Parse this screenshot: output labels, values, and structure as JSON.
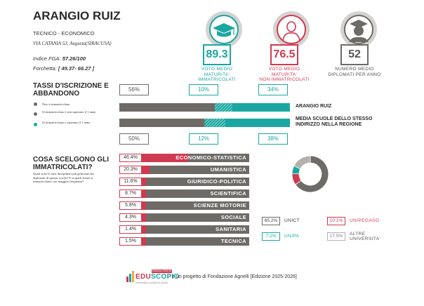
{
  "school": {
    "name": "ARANGIO RUIZ",
    "type": "TECNICO - ECONOMICO",
    "address": "VIA CATANIA 53, Augusta(SIRACUSA)",
    "fga_label": "Indice FGA:",
    "fga_value": "57.26/100",
    "forchetta_label": "Forchetta:",
    "forchetta_value": "[ 49.37- 66.27 ]"
  },
  "stats": [
    {
      "value": "89.3",
      "caption_1": "VOTO MEDIO MATURITA'",
      "caption_2": "IMMATRICOLATI",
      "color": "#1aa7a1"
    },
    {
      "value": "76.5",
      "caption_1": "VOTO MEDIO MATURITA'",
      "caption_2": "NON IMMATRICOLATI",
      "color": "#d03a4f"
    },
    {
      "value": "52",
      "caption_1": "NUMERO MEDIO",
      "caption_2": "DIPLOMATI PER ANNO",
      "color": "#6e6b67"
    }
  ],
  "abbandono": {
    "title_1": "TASSI D'ISCRIZIONE E",
    "title_2": "ABBANDONO",
    "legend": [
      {
        "text": "Non si immatricolano",
        "color": "#6e6b67"
      },
      {
        "text": "Si immatricolano e non superano il 1 anno",
        "color": "#6e6b67"
      },
      {
        "text": "Si immatricolano e superano il 1 anno",
        "color": "#1aa7a1"
      }
    ],
    "school_row": {
      "label": "ARANGIO RUIZ",
      "p1": "56%",
      "p2": "10%",
      "p3": "34%",
      "v1": 56,
      "v2": 10,
      "v3": 34
    },
    "region_row": {
      "label_1": "MEDIA SCUOLE DELLO STESSO",
      "label_2": "INDIRIZZO NELLA REGIONE",
      "p1": "50%",
      "p2": "12%",
      "p3": "38%",
      "v1": 50,
      "v2": 12,
      "v3": 38
    }
  },
  "scelte": {
    "title_1": "COSA SCELGONO GLI",
    "title_2": "IMMATRICOLATI?",
    "note": "Quali sono le aree disciplinari più gettonate dai diplomati di questa scuola? E in quali atenei si immatricolano con maggior frequenza?",
    "areas": [
      {
        "pct": "46.4%",
        "value": 46.4,
        "label": "ECONOMICO-STATISTICA"
      },
      {
        "pct": "20.3%",
        "value": 20.3,
        "label": "UMANISTICA"
      },
      {
        "pct": "11.6%",
        "value": 11.6,
        "label": "GIURIDICO-POLITICA"
      },
      {
        "pct": "8.7%",
        "value": 8.7,
        "label": "SCIENTIFICA"
      },
      {
        "pct": "5.8%",
        "value": 5.8,
        "label": "SCIENZE MOTORIE"
      },
      {
        "pct": "4.3%",
        "value": 4.3,
        "label": "SOCIALE"
      },
      {
        "pct": "1.4%",
        "value": 1.4,
        "label": "SANITARIA"
      },
      {
        "pct": "1.5%",
        "value": 1.5,
        "label": "TECNICA"
      }
    ],
    "universities": [
      {
        "pct": "65.2%",
        "value": 65.2,
        "name_1": "UNICT",
        "name_2": "",
        "color": "#6e6b67"
      },
      {
        "pct": "10.1%",
        "value": 10.1,
        "name_1": "UNIPEGASO",
        "name_2": "",
        "color": "#d03a4f"
      },
      {
        "pct": "7.2%",
        "value": 7.2,
        "name_1": "UNIPA",
        "name_2": "",
        "color": "#1aa7a1"
      },
      {
        "pct": "17.5%",
        "value": 17.5,
        "name_1": "ALTRE",
        "name_2": "UNIVERSITA'",
        "color": "#b3b1ae"
      }
    ]
  },
  "footer": {
    "brand_edu": "EDU",
    "brand_scopio": "SCOPIO",
    "badge": "Edizione 2025-26",
    "tagline": "l'università a portata di scuola",
    "text": "è un progetto di Fondazione Agnelli [Edizione 2025-2026]"
  }
}
